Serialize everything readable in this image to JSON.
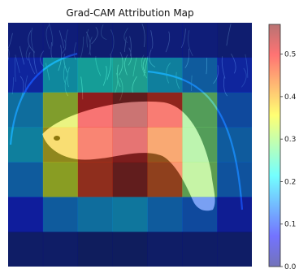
{
  "chart_data": {
    "type": "heatmap",
    "title": "Grad-CAM Attribution Map",
    "rows": 7,
    "cols": 7,
    "values": [
      [
        0.03,
        0.03,
        0.02,
        0.02,
        0.03,
        0.03,
        0.02
      ],
      [
        0.08,
        0.19,
        0.22,
        0.23,
        0.18,
        0.14,
        0.08
      ],
      [
        0.16,
        0.34,
        0.5,
        0.55,
        0.49,
        0.29,
        0.12
      ],
      [
        0.18,
        0.38,
        0.48,
        0.52,
        0.44,
        0.29,
        0.14
      ],
      [
        0.14,
        0.35,
        0.48,
        0.55,
        0.46,
        0.3,
        0.13
      ],
      [
        0.07,
        0.14,
        0.16,
        0.17,
        0.14,
        0.12,
        0.06
      ],
      [
        0.01,
        0.01,
        0.0,
        0.0,
        0.01,
        0.01,
        0.01
      ]
    ],
    "colorbar": {
      "min": 0.0,
      "max": 0.57,
      "ticks": [
        0.0,
        0.1,
        0.2,
        0.3,
        0.4,
        0.5
      ],
      "tick_labels": [
        "0.0",
        "0.1",
        "0.2",
        "0.3",
        "0.4",
        "0.5"
      ],
      "colormap": "jet"
    },
    "background": "fish photograph on dark green background"
  },
  "colors": {
    "fish": "#f2e9e6",
    "tank": "#1f3b3a",
    "net": "#2c8fd9"
  }
}
